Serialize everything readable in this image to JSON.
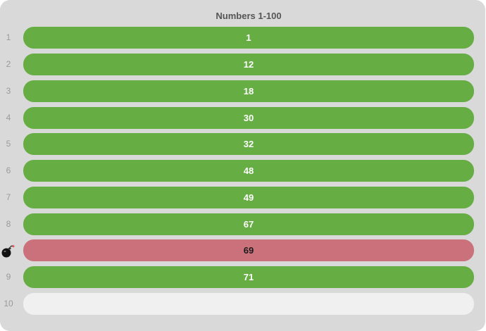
{
  "header": {
    "title": "Numbers 1-100"
  },
  "rows": [
    {
      "rank": "1",
      "value": "1",
      "state": "filled"
    },
    {
      "rank": "2",
      "value": "12",
      "state": "filled"
    },
    {
      "rank": "3",
      "value": "18",
      "state": "filled"
    },
    {
      "rank": "4",
      "value": "30",
      "state": "filled"
    },
    {
      "rank": "5",
      "value": "32",
      "state": "filled"
    },
    {
      "rank": "6",
      "value": "48",
      "state": "filled"
    },
    {
      "rank": "7",
      "value": "49",
      "state": "filled"
    },
    {
      "rank": "8",
      "value": "67",
      "state": "filled"
    },
    {
      "rank": "",
      "value": "69",
      "state": "bomb",
      "icon": "bomb-icon"
    },
    {
      "rank": "9",
      "value": "71",
      "state": "filled"
    },
    {
      "rank": "10",
      "value": "",
      "state": "empty"
    }
  ],
  "colors": {
    "panel": "#d9d9d9",
    "filled": "#66ae44",
    "bomb": "#cb717c",
    "empty": "#f0f0f0"
  }
}
